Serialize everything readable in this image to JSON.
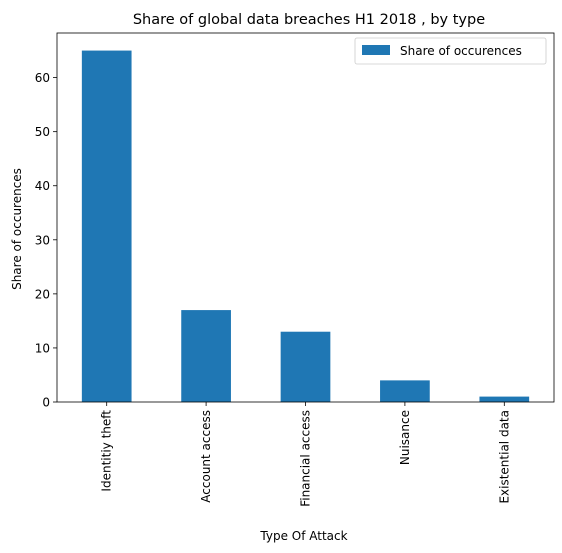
{
  "chart_data": {
    "type": "bar",
    "title": "Share of global data breaches H1 2018 , by type",
    "xlabel": "Type Of Attack",
    "ylabel": "Share of occurences",
    "categories": [
      "Identitiy theft",
      "Account access",
      "Financial access",
      "Nuisance",
      "Existential data"
    ],
    "series": [
      {
        "name": "Share of occurences",
        "values": [
          65,
          17,
          13,
          4,
          1
        ],
        "color": "#1f77b4"
      }
    ],
    "ylim": [
      0,
      68.25
    ],
    "yticks": [
      0,
      10,
      20,
      30,
      40,
      50,
      60
    ],
    "grid": false,
    "legend_position": "top-right"
  }
}
